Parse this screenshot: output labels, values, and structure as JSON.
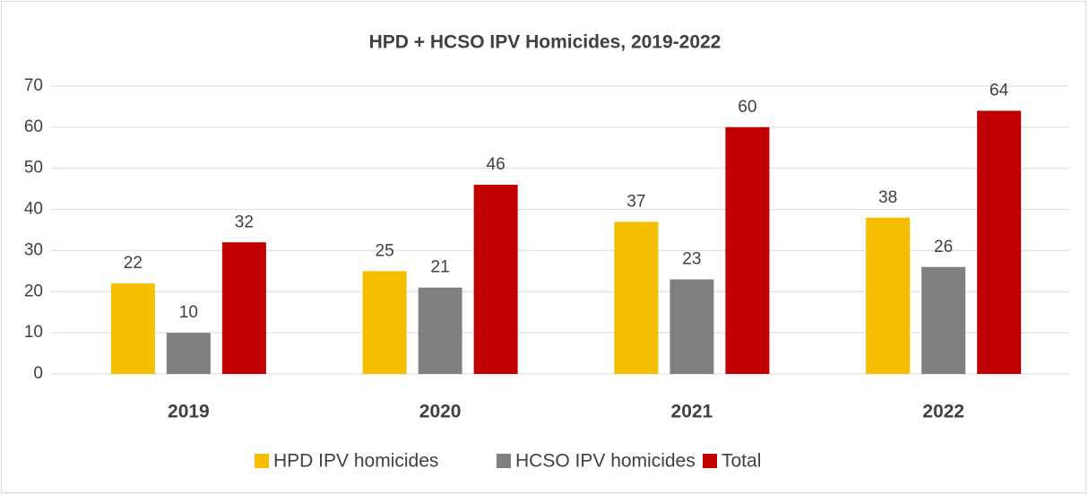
{
  "chart_data": {
    "type": "bar",
    "title": "HPD + HCSO IPV Homicides, 2019-2022",
    "categories": [
      "2019",
      "2020",
      "2021",
      "2022"
    ],
    "series": [
      {
        "name": "HPD IPV homicides",
        "color": "#f5bf00",
        "values": [
          22,
          25,
          37,
          38
        ]
      },
      {
        "name": "HCSO IPV homicides",
        "color": "#808080",
        "values": [
          10,
          21,
          23,
          26
        ]
      },
      {
        "name": "Total",
        "color": "#c00000",
        "values": [
          32,
          46,
          60,
          64
        ]
      }
    ],
    "ylim": [
      0,
      70
    ],
    "yticks": [
      0,
      10,
      20,
      30,
      40,
      50,
      60,
      70
    ],
    "grid": true,
    "legend": "bottom"
  }
}
